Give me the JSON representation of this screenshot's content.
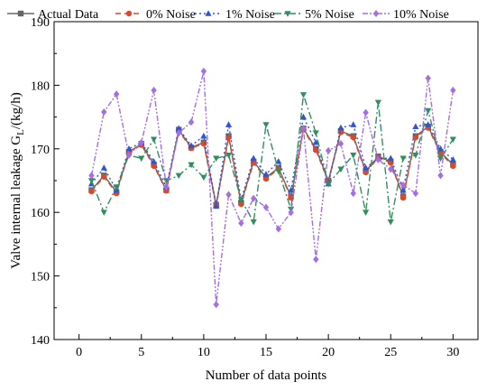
{
  "chart_data": {
    "type": "line",
    "xlabel": "Number of data points",
    "ylabel_main": "Valve internal leakage  G",
    "ylabel_sub": "L",
    "ylabel_unit": "/(kg/h)",
    "xlim": [
      -2,
      32
    ],
    "ylim": [
      140,
      190
    ],
    "xticks": [
      0,
      5,
      10,
      15,
      20,
      25,
      30
    ],
    "yticks": [
      140,
      150,
      160,
      170,
      180,
      190
    ],
    "x": [
      1,
      2,
      3,
      4,
      5,
      6,
      7,
      8,
      9,
      10,
      11,
      12,
      13,
      14,
      15,
      16,
      17,
      18,
      19,
      20,
      21,
      22,
      23,
      24,
      25,
      26,
      27,
      28,
      29,
      30
    ],
    "legend_position": "top",
    "series": [
      {
        "name": "Actual Data",
        "color": "#666666",
        "dash": "",
        "marker": "square",
        "values": [
          163.5,
          165.8,
          163.2,
          169.5,
          170.8,
          167.5,
          163.5,
          173.0,
          170.2,
          171.0,
          161.2,
          172.0,
          161.5,
          168.0,
          165.5,
          167.0,
          162.5,
          173.2,
          170.0,
          165.0,
          172.8,
          172.0,
          166.5,
          168.8,
          168.0,
          162.5,
          172.0,
          173.5,
          169.5,
          167.5
        ]
      },
      {
        "name": "0% Noise",
        "color": "#d9492c",
        "dash": "6,4",
        "marker": "circle",
        "values": [
          163.3,
          165.6,
          163.0,
          169.4,
          170.6,
          167.3,
          163.4,
          172.8,
          170.1,
          170.8,
          161.0,
          171.8,
          161.3,
          167.8,
          165.3,
          166.8,
          162.3,
          173.0,
          169.8,
          164.8,
          172.6,
          171.8,
          166.3,
          168.6,
          167.8,
          162.3,
          171.8,
          173.3,
          169.3,
          167.3
        ]
      },
      {
        "name": "1% Noise",
        "color": "#2f55d0",
        "dash": "2,3",
        "marker": "triangle",
        "values": [
          164.5,
          167.0,
          163.5,
          170.0,
          171.0,
          168.0,
          164.0,
          173.2,
          170.5,
          172.0,
          161.0,
          173.8,
          162.0,
          168.5,
          166.0,
          168.0,
          163.5,
          175.0,
          171.0,
          164.5,
          173.3,
          173.8,
          167.0,
          168.5,
          168.5,
          163.5,
          173.5,
          173.8,
          170.0,
          168.3
        ]
      },
      {
        "name": "5% Noise",
        "color": "#2f8f5e",
        "dash": "8,3,2,3",
        "marker": "triangle-down",
        "values": [
          165.0,
          160.0,
          164.0,
          169.0,
          168.5,
          171.5,
          165.0,
          165.8,
          167.5,
          165.5,
          168.5,
          169.0,
          162.0,
          158.5,
          173.8,
          166.5,
          160.5,
          178.5,
          172.5,
          164.5,
          166.8,
          169.0,
          160.0,
          177.3,
          158.5,
          168.5,
          169.0,
          176.0,
          168.5,
          171.5
        ]
      },
      {
        "name": "10% Noise",
        "color": "#a46ee8",
        "dash": "6,2,2,2,2,2",
        "marker": "diamond",
        "values": [
          165.8,
          175.8,
          178.6,
          169.0,
          171.0,
          179.2,
          164.0,
          172.5,
          174.2,
          182.2,
          145.5,
          162.8,
          158.3,
          162.2,
          160.8,
          157.4,
          160.0,
          173.2,
          152.6,
          169.7,
          170.8,
          163.0,
          175.7,
          168.3,
          166.8,
          164.3,
          163.0,
          181.1,
          165.8,
          179.2
        ]
      }
    ]
  }
}
